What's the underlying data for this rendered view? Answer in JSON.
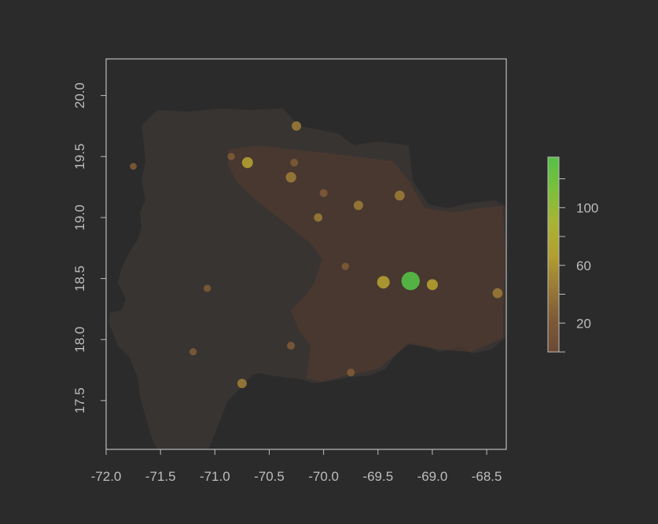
{
  "chart_data": {
    "type": "heatmap",
    "title": "",
    "xlabel": "",
    "ylabel": "",
    "xlim": [
      -72.0,
      -68.32
    ],
    "ylim": [
      17.1,
      20.3
    ],
    "x_ticks": [
      "-72.0",
      "-71.5",
      "-71.0",
      "-70.5",
      "-70.0",
      "-69.5",
      "-69.0",
      "-68.5"
    ],
    "y_ticks": [
      "17.5",
      "18.0",
      "18.5",
      "19.0",
      "19.5",
      "20.0"
    ],
    "legend": {
      "placement": "right",
      "min": 0,
      "max": 135,
      "labels": [
        "20",
        "60",
        "100"
      ],
      "tick_values": [
        0,
        20,
        40,
        60,
        80,
        100,
        120
      ],
      "colors": [
        "#6b4a35",
        "#7e5a36",
        "#9a7a37",
        "#b2a030",
        "#a8b433",
        "#7bc03c",
        "#55c047"
      ]
    },
    "background_color": "#2b2b2b",
    "land_color": "#383432",
    "low_value_color": "#4e3a30",
    "hotspots": [
      {
        "name": "",
        "lon": -69.2,
        "lat": 18.48,
        "value": 130
      },
      {
        "name": "",
        "lon": -69.45,
        "lat": 18.47,
        "value": 75
      },
      {
        "name": "",
        "lon": -69.0,
        "lat": 18.45,
        "value": 60
      },
      {
        "name": "",
        "lon": -70.7,
        "lat": 19.45,
        "value": 60
      },
      {
        "name": "",
        "lon": -70.3,
        "lat": 19.33,
        "value": 55
      },
      {
        "name": "",
        "lon": -70.27,
        "lat": 19.45,
        "value": 30
      },
      {
        "name": "",
        "lon": -70.0,
        "lat": 19.2,
        "value": 30
      },
      {
        "name": "",
        "lon": -69.68,
        "lat": 19.1,
        "value": 45
      },
      {
        "name": "",
        "lon": -70.05,
        "lat": 19.0,
        "value": 35
      },
      {
        "name": "",
        "lon": -70.25,
        "lat": 19.75,
        "value": 45
      },
      {
        "name": "",
        "lon": -69.3,
        "lat": 19.18,
        "value": 50
      },
      {
        "name": "",
        "lon": -68.4,
        "lat": 18.38,
        "value": 50
      },
      {
        "name": "",
        "lon": -70.75,
        "lat": 17.64,
        "value": 45
      },
      {
        "name": "",
        "lon": -70.3,
        "lat": 17.95,
        "value": 30
      },
      {
        "name": "",
        "lon": -69.75,
        "lat": 17.73,
        "value": 30
      },
      {
        "name": "",
        "lon": -71.07,
        "lat": 18.42,
        "value": 25
      },
      {
        "name": "",
        "lon": -70.85,
        "lat": 19.5,
        "value": 25
      },
      {
        "name": "",
        "lon": -69.8,
        "lat": 18.6,
        "value": 25
      },
      {
        "name": "",
        "lon": -71.75,
        "lat": 19.42,
        "value": 20
      },
      {
        "name": "",
        "lon": -71.2,
        "lat": 17.9,
        "value": 25
      }
    ]
  }
}
